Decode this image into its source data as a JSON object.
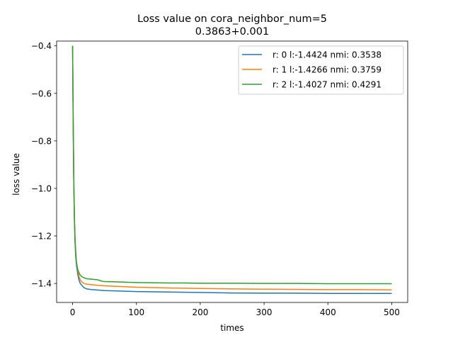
{
  "chart_data": {
    "type": "line",
    "title": "Loss value on cora_neighbor_num=5",
    "subtitle": "0.3863+0.001",
    "xlabel": "times",
    "ylabel": "loss value",
    "xlim": [
      -25,
      525
    ],
    "ylim": [
      -1.48,
      -0.38
    ],
    "xticks": [
      0,
      100,
      200,
      300,
      400,
      500
    ],
    "xtick_labels": [
      "0",
      "100",
      "200",
      "300",
      "400",
      "500"
    ],
    "yticks": [
      -0.4,
      -0.6,
      -0.8,
      -1.0,
      -1.2,
      -1.4
    ],
    "ytick_labels": [
      "−0.4",
      "−0.6",
      "−0.8",
      "−1.0",
      "−1.2",
      "−1.4"
    ],
    "grid": false,
    "legend_position": "top-right",
    "series": [
      {
        "name": "r: 0 l:-1.4424 nmi: 0.3538",
        "color": "#1f77b4",
        "x": [
          0,
          1,
          2,
          3,
          4,
          5,
          6,
          8,
          10,
          12,
          15,
          18,
          22,
          30,
          40,
          50,
          75,
          100,
          150,
          200,
          250,
          300,
          350,
          400,
          450,
          500
        ],
        "y": [
          -0.4,
          -0.75,
          -1.0,
          -1.15,
          -1.24,
          -1.29,
          -1.32,
          -1.36,
          -1.385,
          -1.4,
          -1.41,
          -1.418,
          -1.423,
          -1.426,
          -1.428,
          -1.43,
          -1.432,
          -1.434,
          -1.436,
          -1.438,
          -1.44,
          -1.441,
          -1.441,
          -1.442,
          -1.442,
          -1.442
        ]
      },
      {
        "name": "r: 1 l:-1.4266 nmi: 0.3759",
        "color": "#ff7f0e",
        "x": [
          0,
          1,
          2,
          3,
          4,
          5,
          6,
          8,
          10,
          12,
          15,
          18,
          22,
          30,
          40,
          50,
          75,
          100,
          150,
          200,
          250,
          300,
          350,
          400,
          450,
          500
        ],
        "y": [
          -0.4,
          -0.75,
          -1.0,
          -1.15,
          -1.23,
          -1.28,
          -1.31,
          -1.345,
          -1.37,
          -1.385,
          -1.395,
          -1.4,
          -1.403,
          -1.405,
          -1.408,
          -1.41,
          -1.413,
          -1.416,
          -1.419,
          -1.421,
          -1.423,
          -1.424,
          -1.425,
          -1.426,
          -1.426,
          -1.427
        ]
      },
      {
        "name": "r: 2 l:-1.4027 nmi: 0.4291",
        "color": "#2ca02c",
        "x": [
          0,
          1,
          2,
          3,
          4,
          5,
          6,
          8,
          10,
          12,
          15,
          18,
          22,
          30,
          40,
          45,
          50,
          75,
          100,
          150,
          175,
          200,
          250,
          300,
          350,
          400,
          450,
          500
        ],
        "y": [
          -0.4,
          -0.72,
          -0.98,
          -1.13,
          -1.22,
          -1.27,
          -1.31,
          -1.34,
          -1.355,
          -1.365,
          -1.372,
          -1.376,
          -1.38,
          -1.382,
          -1.385,
          -1.39,
          -1.392,
          -1.394,
          -1.396,
          -1.398,
          -1.398,
          -1.399,
          -1.399,
          -1.4,
          -1.4,
          -1.401,
          -1.401,
          -1.401
        ]
      }
    ]
  }
}
